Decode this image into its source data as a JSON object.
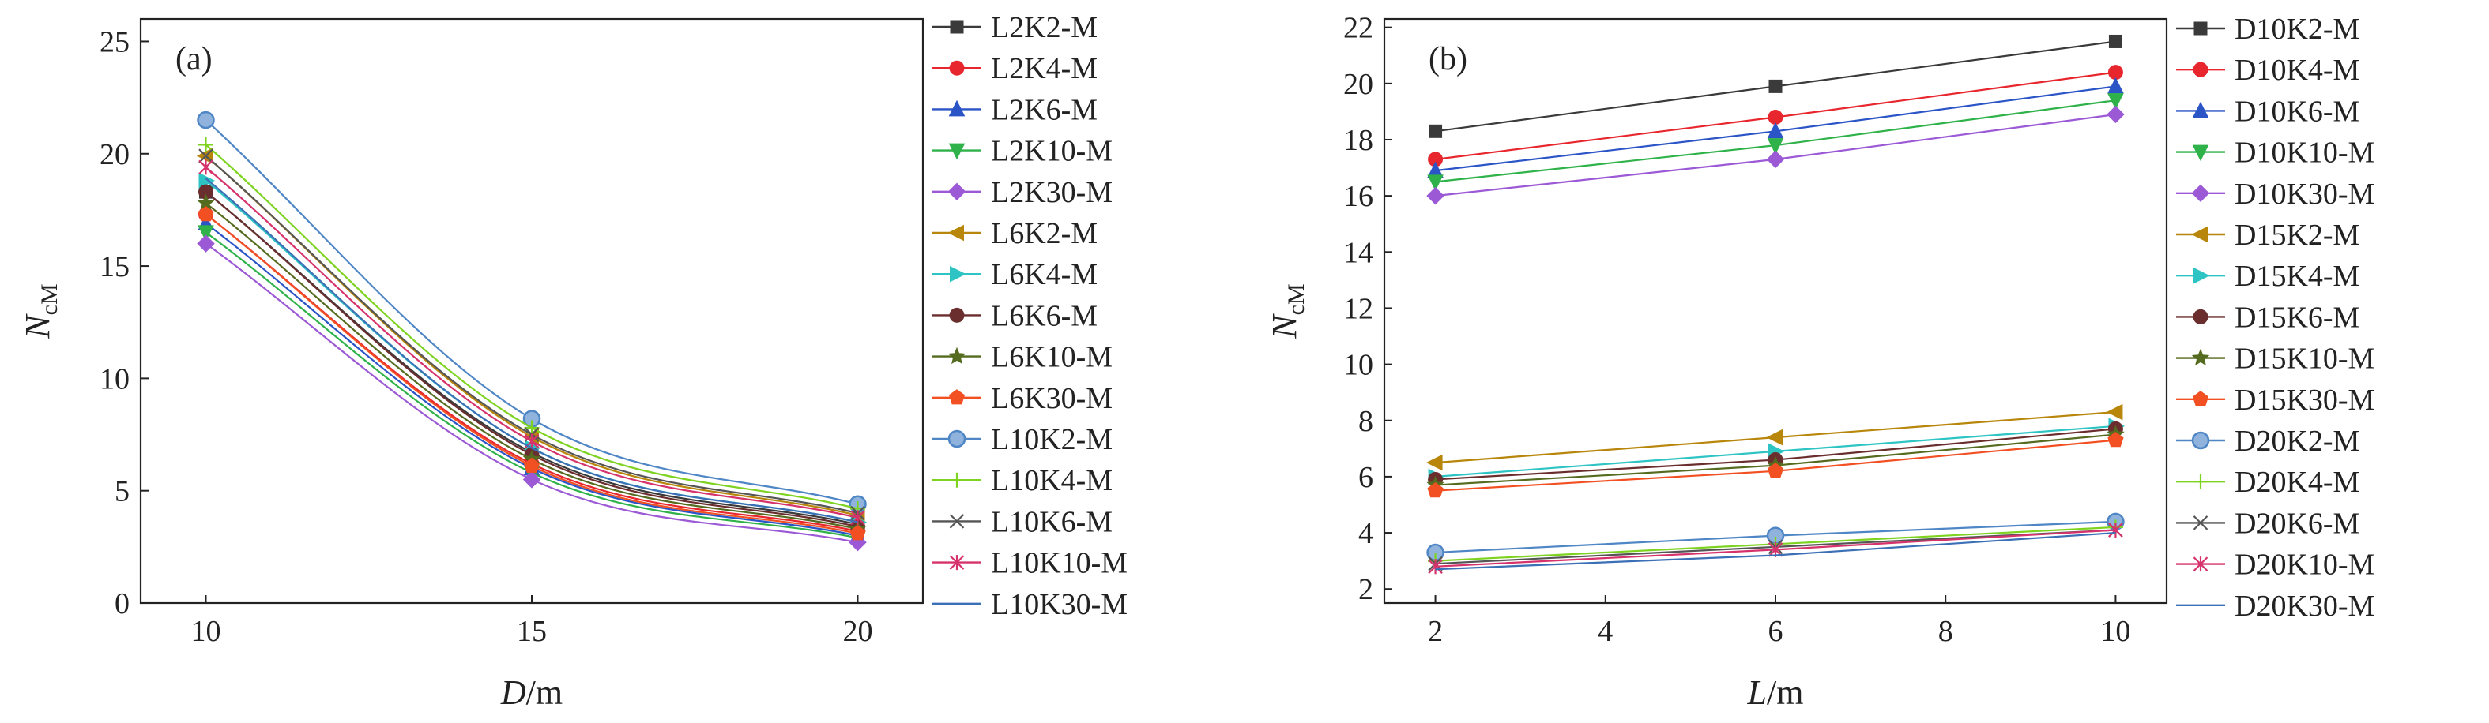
{
  "chart_data": [
    {
      "type": "line",
      "panel_label": "(a)",
      "xlabel": "D/m",
      "xlabel_main": "D",
      "xlabel_unit": "/m",
      "ylabel_main": "N",
      "ylabel_sub": "cM",
      "x": [
        10,
        15,
        20
      ],
      "xlim": [
        9,
        21
      ],
      "ylim": [
        0,
        26
      ],
      "xticks": [
        10,
        15,
        20
      ],
      "yticks": [
        0,
        5,
        10,
        15,
        20,
        25
      ],
      "legend_position": "right",
      "series": [
        {
          "name": "L2K2-M",
          "values": [
            18.3,
            6.7,
            3.5
          ],
          "color": "#3a3a3a",
          "marker": "square"
        },
        {
          "name": "L2K4-M",
          "values": [
            17.3,
            6.2,
            3.2
          ],
          "color": "#e8262e",
          "marker": "circle"
        },
        {
          "name": "L2K6-M",
          "values": [
            16.9,
            6.0,
            3.0
          ],
          "color": "#2b55c7",
          "marker": "triangle-up"
        },
        {
          "name": "L2K10-M",
          "values": [
            16.5,
            5.8,
            2.9
          ],
          "color": "#2fb24a",
          "marker": "triangle-down"
        },
        {
          "name": "L2K30-M",
          "values": [
            16.0,
            5.5,
            2.7
          ],
          "color": "#9b59d6",
          "marker": "diamond"
        },
        {
          "name": "L6K2-M",
          "values": [
            19.9,
            7.4,
            3.9
          ],
          "color": "#b8860b",
          "marker": "triangle-left"
        },
        {
          "name": "L6K4-M",
          "values": [
            18.8,
            6.9,
            3.6
          ],
          "color": "#2ec4c4",
          "marker": "triangle-right"
        },
        {
          "name": "L6K6-M",
          "values": [
            18.3,
            6.6,
            3.4
          ],
          "color": "#6b2e2e",
          "marker": "circle"
        },
        {
          "name": "L6K10-M",
          "values": [
            17.8,
            6.4,
            3.3
          ],
          "color": "#556b1f",
          "marker": "star"
        },
        {
          "name": "L6K30-M",
          "values": [
            17.3,
            6.1,
            3.1
          ],
          "color": "#f25022",
          "marker": "pentagon"
        },
        {
          "name": "L10K2-M",
          "values": [
            21.5,
            8.2,
            4.4
          ],
          "color": "#4f86c6",
          "marker": "circle-shaded"
        },
        {
          "name": "L10K4-M",
          "values": [
            20.4,
            7.8,
            4.2
          ],
          "color": "#7ed321",
          "marker": "plus"
        },
        {
          "name": "L10K6-M",
          "values": [
            19.9,
            7.5,
            4.0
          ],
          "color": "#555555",
          "marker": "x"
        },
        {
          "name": "L10K10-M",
          "values": [
            19.4,
            7.2,
            3.8
          ],
          "color": "#d6336c",
          "marker": "asterisk"
        },
        {
          "name": "L10K30-M",
          "values": [
            18.9,
            6.9,
            3.6
          ],
          "color": "#3b6fb6",
          "marker": "none"
        }
      ]
    },
    {
      "type": "line",
      "panel_label": "(b)",
      "xlabel": "L/m",
      "xlabel_main": "L",
      "xlabel_unit": "/m",
      "ylabel_main": "N",
      "ylabel_sub": "cM",
      "x": [
        2,
        6,
        10
      ],
      "xlim": [
        1.4,
        10.6
      ],
      "ylim": [
        1.5,
        22.3
      ],
      "xticks": [
        2,
        4,
        6,
        8,
        10
      ],
      "yticks": [
        2,
        4,
        6,
        8,
        10,
        12,
        14,
        16,
        18,
        20,
        22
      ],
      "legend_position": "right",
      "series": [
        {
          "name": "D10K2-M",
          "values": [
            18.3,
            19.9,
            21.5
          ],
          "color": "#3a3a3a",
          "marker": "square"
        },
        {
          "name": "D10K4-M",
          "values": [
            17.3,
            18.8,
            20.4
          ],
          "color": "#e8262e",
          "marker": "circle"
        },
        {
          "name": "D10K6-M",
          "values": [
            16.9,
            18.3,
            19.9
          ],
          "color": "#2b55c7",
          "marker": "triangle-up"
        },
        {
          "name": "D10K10-M",
          "values": [
            16.5,
            17.8,
            19.4
          ],
          "color": "#2fb24a",
          "marker": "triangle-down"
        },
        {
          "name": "D10K30-M",
          "values": [
            16.0,
            17.3,
            18.9
          ],
          "color": "#9b59d6",
          "marker": "diamond"
        },
        {
          "name": "D15K2-M",
          "values": [
            6.5,
            7.4,
            8.3
          ],
          "color": "#b8860b",
          "marker": "triangle-left"
        },
        {
          "name": "D15K4-M",
          "values": [
            6.0,
            6.9,
            7.8
          ],
          "color": "#2ec4c4",
          "marker": "triangle-right"
        },
        {
          "name": "D15K6-M",
          "values": [
            5.9,
            6.6,
            7.7
          ],
          "color": "#6b2e2e",
          "marker": "circle"
        },
        {
          "name": "D15K10-M",
          "values": [
            5.7,
            6.4,
            7.5
          ],
          "color": "#556b1f",
          "marker": "star"
        },
        {
          "name": "D15K30-M",
          "values": [
            5.5,
            6.2,
            7.3
          ],
          "color": "#f25022",
          "marker": "pentagon"
        },
        {
          "name": "D20K2-M",
          "values": [
            3.3,
            3.9,
            4.4
          ],
          "color": "#4f86c6",
          "marker": "circle-shaded"
        },
        {
          "name": "D20K4-M",
          "values": [
            3.0,
            3.6,
            4.2
          ],
          "color": "#7ed321",
          "marker": "plus"
        },
        {
          "name": "D20K6-M",
          "values": [
            2.9,
            3.5,
            4.1
          ],
          "color": "#555555",
          "marker": "x"
        },
        {
          "name": "D20K10-M",
          "values": [
            2.8,
            3.4,
            4.1
          ],
          "color": "#d6336c",
          "marker": "asterisk"
        },
        {
          "name": "D20K30-M",
          "values": [
            2.7,
            3.2,
            4.0
          ],
          "color": "#3b6fb6",
          "marker": "none"
        }
      ]
    }
  ]
}
